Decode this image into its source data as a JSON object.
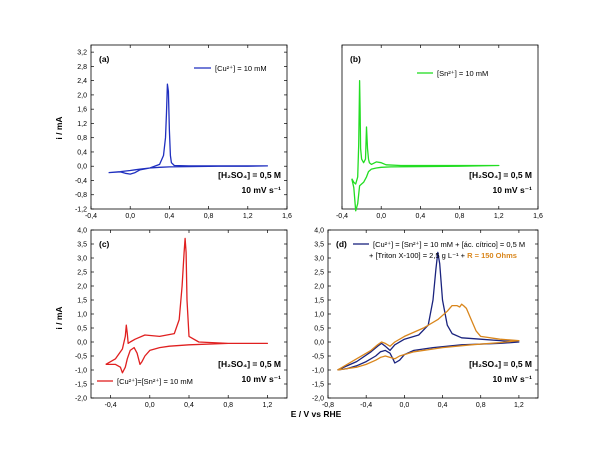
{
  "figure": {
    "shared_ylabel_top": "i / mA",
    "shared_ylabel_bottom": "i / mA",
    "shared_xlabel": "E / V vs RHE"
  },
  "chart_data": [
    {
      "type": "line",
      "panel": "(a)",
      "xlim": [
        -0.4,
        1.6
      ],
      "ylim": [
        -1.2,
        3.4
      ],
      "xticks": [
        "-0,4",
        "0,0",
        "0,4",
        "0,8",
        "1,2",
        "1,6"
      ],
      "yticks": [
        "-1,2",
        "-0,8",
        "-0,4",
        "0,0",
        "0,4",
        "0,8",
        "1,2",
        "1,6",
        "2,0",
        "2,4",
        "2,8",
        "3,2"
      ],
      "xlabel": "",
      "ylabel": "i / mA",
      "legend": "[Cu²⁺] = 10 mM",
      "annotation_lines": [
        "[H₂SO₄] = 0,5 M",
        "10 mV s⁻¹"
      ],
      "series": [
        {
          "name": "[Cu²⁺] = 10 mM",
          "color": "#1f2fbf",
          "x": [
            -0.22,
            -0.1,
            0.0,
            0.05,
            0.1,
            0.2,
            0.3,
            0.34,
            0.36,
            0.37,
            0.38,
            0.39,
            0.4,
            0.41,
            0.42,
            0.45,
            0.6,
            0.9,
            1.2,
            1.4,
            1.2,
            0.9,
            0.6,
            0.4,
            0.3,
            0.2,
            0.1,
            0.05,
            0.0,
            -0.05,
            -0.1,
            -0.22
          ],
          "y": [
            -0.18,
            -0.15,
            -0.12,
            -0.1,
            -0.08,
            -0.05,
            0.05,
            0.3,
            0.8,
            1.5,
            2.3,
            2.1,
            1.0,
            0.3,
            0.1,
            0.02,
            0.01,
            0.01,
            0.01,
            0.01,
            0.0,
            0.0,
            -0.01,
            -0.02,
            -0.03,
            -0.05,
            -0.1,
            -0.18,
            -0.22,
            -0.2,
            -0.16,
            -0.18
          ]
        }
      ]
    },
    {
      "type": "line",
      "panel": "(b)",
      "xlim": [
        -0.4,
        1.6
      ],
      "ylim": [
        -1.2,
        3.4
      ],
      "xticks": [
        "-0,4",
        "0,0",
        "0,4",
        "0,8",
        "1,2",
        "1,6"
      ],
      "yticks": [],
      "xlabel": "",
      "ylabel": "",
      "legend": "[Sn²⁺] = 10 mM",
      "annotation_lines": [
        "[H₂SO₄] = 0,5 M",
        "10 mV s⁻¹"
      ],
      "series": [
        {
          "name": "[Sn²⁺] = 10 mM",
          "color": "#22dd22",
          "x": [
            -0.3,
            -0.28,
            -0.26,
            -0.24,
            -0.23,
            -0.22,
            -0.215,
            -0.21,
            -0.2,
            -0.18,
            -0.16,
            -0.15,
            -0.14,
            -0.13,
            -0.12,
            -0.1,
            -0.05,
            0.0,
            0.05,
            0.2,
            0.5,
            0.8,
            1.2,
            0.8,
            0.4,
            0.1,
            0.0,
            -0.05,
            -0.1,
            -0.13,
            -0.15,
            -0.18,
            -0.2,
            -0.22,
            -0.24,
            -0.26,
            -0.28,
            -0.3
          ],
          "y": [
            -0.35,
            -0.45,
            -0.5,
            -0.3,
            0.6,
            2.4,
            1.6,
            0.5,
            0.2,
            0.1,
            0.2,
            1.1,
            0.5,
            0.2,
            0.1,
            0.05,
            0.12,
            0.1,
            0.04,
            0.02,
            0.02,
            0.02,
            0.02,
            0.0,
            -0.01,
            -0.02,
            -0.03,
            -0.05,
            -0.08,
            -0.15,
            -0.3,
            -0.45,
            -0.5,
            -0.55,
            -1.05,
            -1.25,
            -0.6,
            -0.35
          ]
        }
      ]
    },
    {
      "type": "line",
      "panel": "(c)",
      "xlim": [
        -0.6,
        1.4
      ],
      "ylim": [
        -2.0,
        4.0
      ],
      "xticks": [
        "-0,4",
        "0,0",
        "0,4",
        "0,8",
        "1,2"
      ],
      "yticks": [
        "-2,0",
        "-1,5",
        "-1,0",
        "-0,5",
        "0,0",
        "0,5",
        "1,0",
        "1,5",
        "2,0",
        "2,5",
        "3,0",
        "3,5",
        "4,0"
      ],
      "xlabel": "E / V vs RHE",
      "ylabel": "i / mA",
      "legend": "[Cu²⁺]=[Sn²⁺] = 10 mM",
      "annotation_lines": [
        "[H₂SO₄] = 0,5 M",
        "10 mV s⁻¹"
      ],
      "series": [
        {
          "name": "[Cu²⁺]=[Sn²⁺] = 10 mM",
          "color": "#e02020",
          "x": [
            -0.45,
            -0.35,
            -0.28,
            -0.25,
            -0.24,
            -0.23,
            -0.22,
            -0.2,
            -0.15,
            -0.05,
            0.1,
            0.25,
            0.3,
            0.33,
            0.35,
            0.36,
            0.37,
            0.38,
            0.4,
            0.5,
            0.8,
            1.2,
            0.8,
            0.4,
            0.2,
            0.1,
            0.0,
            -0.05,
            -0.08,
            -0.1,
            -0.13,
            -0.16,
            -0.2,
            -0.23,
            -0.25,
            -0.28,
            -0.3,
            -0.35,
            -0.45
          ],
          "y": [
            -0.8,
            -0.6,
            -0.25,
            0.2,
            0.6,
            0.3,
            -0.05,
            0.0,
            0.1,
            0.25,
            0.2,
            0.3,
            0.8,
            2.0,
            3.2,
            3.7,
            3.2,
            1.5,
            0.2,
            0.0,
            -0.05,
            -0.05,
            -0.05,
            -0.1,
            -0.15,
            -0.2,
            -0.3,
            -0.5,
            -0.7,
            -0.8,
            -0.4,
            -0.2,
            -0.3,
            -0.6,
            -0.9,
            -1.1,
            -0.9,
            -0.8,
            -0.8
          ]
        }
      ]
    },
    {
      "type": "line",
      "panel": "(d)",
      "xlim": [
        -0.8,
        1.4
      ],
      "ylim": [
        -2.0,
        4.0
      ],
      "xticks": [
        "-0,8",
        "-0,4",
        "0,0",
        "0,4",
        "0,8",
        "1,2"
      ],
      "yticks": [
        "-2,0",
        "-1,5",
        "-1,0",
        "-0,5",
        "0,0",
        "0,5",
        "1,0",
        "1,5",
        "2,0",
        "2,5",
        "3,0",
        "3,5",
        "4,0"
      ],
      "xlabel": "E / V vs RHE",
      "ylabel": "",
      "legend_line1": "[Cu²⁺] = [Sn²⁺] = 10 mM + [ác. cítrico] = 0,5 M",
      "legend_line2_prefix": "+ [Triton X-100] = 2,5 g  L⁻¹ + ",
      "legend_line2_highlight": "R = 150 Ohms",
      "annotation_lines": [
        "[H₂SO₄] = 0,5 M",
        "10 mV s⁻¹"
      ],
      "series": [
        {
          "name": "navy",
          "color": "#1a237e",
          "x": [
            -0.7,
            -0.5,
            -0.35,
            -0.28,
            -0.24,
            -0.2,
            -0.15,
            -0.1,
            0.0,
            0.15,
            0.25,
            0.3,
            0.33,
            0.35,
            0.37,
            0.4,
            0.45,
            0.5,
            0.6,
            0.8,
            1.0,
            1.2,
            1.0,
            0.6,
            0.3,
            0.1,
            0.0,
            -0.05,
            -0.1,
            -0.12,
            -0.15,
            -0.2,
            -0.25,
            -0.3,
            -0.4,
            -0.5,
            -0.6,
            -0.7
          ],
          "y": [
            -1.0,
            -0.7,
            -0.35,
            -0.15,
            -0.05,
            -0.15,
            -0.3,
            -0.1,
            0.1,
            0.25,
            0.6,
            1.5,
            2.6,
            3.2,
            2.8,
            1.5,
            0.6,
            0.3,
            0.15,
            0.1,
            0.05,
            0.0,
            -0.05,
            -0.1,
            -0.2,
            -0.3,
            -0.45,
            -0.65,
            -0.75,
            -0.6,
            -0.4,
            -0.3,
            -0.35,
            -0.5,
            -0.7,
            -0.85,
            -0.95,
            -1.0
          ]
        },
        {
          "name": "orange",
          "color": "#d9861c",
          "x": [
            -0.7,
            -0.5,
            -0.35,
            -0.28,
            -0.24,
            -0.2,
            -0.15,
            -0.1,
            0.0,
            0.2,
            0.35,
            0.45,
            0.5,
            0.55,
            0.58,
            0.6,
            0.62,
            0.65,
            0.7,
            0.75,
            0.8,
            1.0,
            1.2,
            1.0,
            0.7,
            0.4,
            0.1,
            -0.05,
            -0.1,
            -0.15,
            -0.2,
            -0.25,
            -0.3,
            -0.4,
            -0.5,
            -0.6,
            -0.7
          ],
          "y": [
            -1.0,
            -0.6,
            -0.3,
            -0.1,
            0.0,
            -0.05,
            -0.15,
            0.0,
            0.2,
            0.5,
            0.8,
            1.1,
            1.3,
            1.3,
            1.25,
            1.35,
            1.3,
            1.2,
            0.8,
            0.4,
            0.2,
            0.1,
            0.05,
            -0.02,
            -0.1,
            -0.2,
            -0.35,
            -0.5,
            -0.6,
            -0.55,
            -0.5,
            -0.55,
            -0.65,
            -0.8,
            -0.9,
            -0.95,
            -1.0
          ]
        }
      ]
    }
  ]
}
